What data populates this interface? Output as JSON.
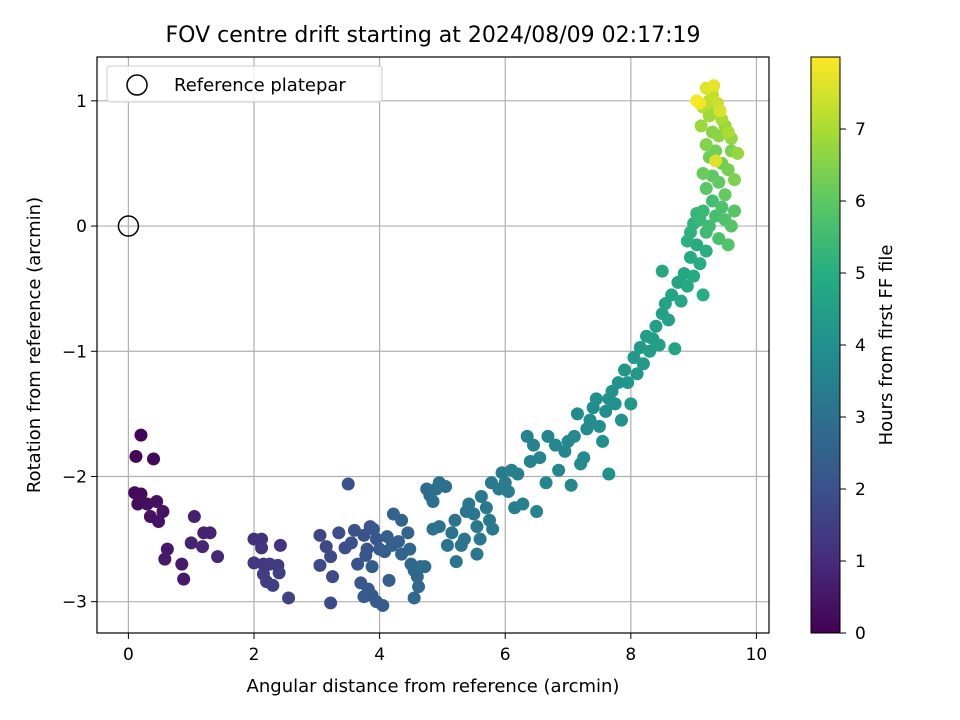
{
  "chart_data": {
    "type": "scatter",
    "title": "FOV centre drift starting at 2024/08/09 02:17:19",
    "xlabel": "Angular distance from reference (arcmin)",
    "ylabel": "Rotation from reference (arcmin)",
    "xlim": [
      -0.5,
      10.2
    ],
    "ylim": [
      -3.25,
      1.35
    ],
    "xticks": [
      0,
      2,
      4,
      6,
      8,
      10
    ],
    "yticks": [
      -3,
      -2,
      -1,
      0,
      1
    ],
    "grid": true,
    "legend": {
      "placement": "top-left",
      "entries": [
        {
          "label": "Reference platepar",
          "marker": "open-circle"
        }
      ]
    },
    "reference_point": {
      "x": 0.0,
      "y": 0.0
    },
    "colorbar": {
      "label": "Hours from first FF file",
      "range": [
        0,
        8.0
      ],
      "ticks": [
        0,
        1,
        2,
        3,
        4,
        5,
        6,
        7
      ],
      "colormap": "viridis"
    },
    "series": [
      {
        "color_by": "hours",
        "points": [
          [
            0.2,
            -1.67,
            0.1
          ],
          [
            0.12,
            -1.84,
            0.1
          ],
          [
            0.4,
            -1.86,
            0.15
          ],
          [
            0.1,
            -2.13,
            0.2
          ],
          [
            0.2,
            -2.14,
            0.25
          ],
          [
            0.15,
            -2.22,
            0.25
          ],
          [
            0.3,
            -2.22,
            0.3
          ],
          [
            0.45,
            -2.2,
            0.35
          ],
          [
            0.55,
            -2.28,
            0.4
          ],
          [
            0.35,
            -2.32,
            0.4
          ],
          [
            0.48,
            -2.36,
            0.45
          ],
          [
            0.62,
            -2.58,
            0.5
          ],
          [
            0.58,
            -2.66,
            0.55
          ],
          [
            0.85,
            -2.7,
            0.6
          ],
          [
            0.88,
            -2.82,
            0.6
          ],
          [
            1.05,
            -2.32,
            0.7
          ],
          [
            1.2,
            -2.45,
            0.75
          ],
          [
            1.3,
            -2.45,
            0.8
          ],
          [
            1.0,
            -2.53,
            0.8
          ],
          [
            1.18,
            -2.56,
            0.85
          ],
          [
            1.42,
            -2.64,
            0.9
          ],
          [
            2.0,
            -2.5,
            1.1
          ],
          [
            2.12,
            -2.5,
            1.15
          ],
          [
            2.12,
            -2.57,
            1.2
          ],
          [
            2.42,
            -2.55,
            1.25
          ],
          [
            2.0,
            -2.69,
            1.3
          ],
          [
            2.15,
            -2.7,
            1.3
          ],
          [
            2.25,
            -2.7,
            1.35
          ],
          [
            2.38,
            -2.71,
            1.4
          ],
          [
            2.15,
            -2.78,
            1.45
          ],
          [
            2.2,
            -2.84,
            1.45
          ],
          [
            2.3,
            -2.87,
            1.5
          ],
          [
            2.4,
            -2.77,
            1.5
          ],
          [
            2.55,
            -2.97,
            1.6
          ],
          [
            3.05,
            -2.47,
            1.7
          ],
          [
            3.15,
            -2.56,
            1.75
          ],
          [
            3.05,
            -2.71,
            1.8
          ],
          [
            3.22,
            -2.64,
            1.8
          ],
          [
            3.25,
            -2.8,
            1.85
          ],
          [
            3.22,
            -3.01,
            1.85
          ],
          [
            3.35,
            -2.45,
            1.9
          ],
          [
            3.45,
            -2.57,
            1.95
          ],
          [
            3.55,
            -2.53,
            2.0
          ],
          [
            3.6,
            -2.43,
            2.0
          ],
          [
            3.5,
            -2.06,
            2.0
          ],
          [
            3.65,
            -2.7,
            2.05
          ],
          [
            3.75,
            -2.47,
            2.1
          ],
          [
            3.8,
            -2.58,
            2.1
          ],
          [
            3.78,
            -2.63,
            2.15
          ],
          [
            3.85,
            -2.4,
            2.15
          ],
          [
            3.9,
            -2.42,
            2.2
          ],
          [
            3.95,
            -2.5,
            2.2
          ],
          [
            3.7,
            -2.85,
            2.2
          ],
          [
            3.82,
            -2.9,
            2.25
          ],
          [
            3.88,
            -2.95,
            2.25
          ],
          [
            3.75,
            -2.96,
            2.3
          ],
          [
            3.95,
            -3.0,
            2.3
          ],
          [
            4.05,
            -3.03,
            2.35
          ],
          [
            3.88,
            -2.72,
            2.35
          ],
          [
            4.0,
            -2.58,
            2.4
          ],
          [
            4.08,
            -2.6,
            2.4
          ],
          [
            4.12,
            -2.48,
            2.45
          ],
          [
            4.15,
            -2.83,
            2.45
          ],
          [
            4.2,
            -2.55,
            2.5
          ],
          [
            4.3,
            -2.52,
            2.5
          ],
          [
            4.35,
            -2.62,
            2.55
          ],
          [
            4.22,
            -2.3,
            2.55
          ],
          [
            4.45,
            -2.45,
            2.6
          ],
          [
            4.35,
            -2.35,
            2.6
          ],
          [
            4.48,
            -2.58,
            2.65
          ],
          [
            4.5,
            -2.7,
            2.65
          ],
          [
            4.55,
            -2.75,
            2.7
          ],
          [
            4.6,
            -2.8,
            2.7
          ],
          [
            4.62,
            -2.88,
            2.75
          ],
          [
            4.55,
            -2.97,
            2.75
          ],
          [
            4.72,
            -2.72,
            2.8
          ],
          [
            4.65,
            -2.72,
            2.8
          ],
          [
            4.75,
            -2.1,
            2.85
          ],
          [
            4.8,
            -2.15,
            2.85
          ],
          [
            4.85,
            -2.2,
            2.9
          ],
          [
            4.9,
            -2.1,
            2.9
          ],
          [
            4.95,
            -2.05,
            2.95
          ],
          [
            5.05,
            -2.08,
            2.95
          ],
          [
            4.85,
            -2.42,
            3.0
          ],
          [
            4.95,
            -2.4,
            3.0
          ],
          [
            5.08,
            -2.55,
            3.05
          ],
          [
            5.15,
            -2.45,
            3.05
          ],
          [
            5.2,
            -2.35,
            3.05
          ],
          [
            5.22,
            -2.68,
            3.1
          ],
          [
            5.3,
            -2.55,
            3.1
          ],
          [
            5.35,
            -2.5,
            3.1
          ],
          [
            5.38,
            -2.28,
            3.15
          ],
          [
            5.42,
            -2.22,
            3.15
          ],
          [
            5.5,
            -2.3,
            3.15
          ],
          [
            5.55,
            -2.4,
            3.2
          ],
          [
            5.55,
            -2.62,
            3.2
          ],
          [
            5.6,
            -2.5,
            3.2
          ],
          [
            5.62,
            -2.16,
            3.25
          ],
          [
            5.7,
            -2.25,
            3.25
          ],
          [
            5.75,
            -2.35,
            3.3
          ],
          [
            5.8,
            -2.42,
            3.3
          ],
          [
            5.78,
            -2.05,
            3.3
          ],
          [
            5.9,
            -2.1,
            3.35
          ],
          [
            5.95,
            -1.97,
            3.35
          ],
          [
            6.0,
            -2.05,
            3.4
          ],
          [
            6.05,
            -2.12,
            3.4
          ],
          [
            6.1,
            -1.95,
            3.45
          ],
          [
            6.2,
            -1.98,
            3.45
          ],
          [
            6.15,
            -2.25,
            3.45
          ],
          [
            6.28,
            -2.22,
            3.5
          ],
          [
            6.35,
            -1.68,
            3.5
          ],
          [
            6.4,
            -1.88,
            3.55
          ],
          [
            6.45,
            -1.75,
            3.55
          ],
          [
            6.55,
            -1.85,
            3.6
          ],
          [
            6.5,
            -2.28,
            3.6
          ],
          [
            6.65,
            -2.05,
            3.65
          ],
          [
            6.68,
            -1.68,
            3.65
          ],
          [
            6.8,
            -1.75,
            3.7
          ],
          [
            6.85,
            -1.95,
            3.7
          ],
          [
            6.95,
            -1.8,
            3.7
          ],
          [
            7.0,
            -1.72,
            3.75
          ],
          [
            7.05,
            -2.07,
            3.75
          ],
          [
            7.1,
            -1.68,
            3.8
          ],
          [
            7.15,
            -1.5,
            3.8
          ],
          [
            7.2,
            -1.9,
            3.8
          ],
          [
            7.25,
            -1.85,
            3.85
          ],
          [
            7.3,
            -1.62,
            3.85
          ],
          [
            7.35,
            -1.55,
            3.9
          ],
          [
            7.4,
            -1.45,
            3.9
          ],
          [
            7.45,
            -1.38,
            3.95
          ],
          [
            7.5,
            -1.6,
            3.95
          ],
          [
            7.55,
            -1.72,
            4.0
          ],
          [
            7.6,
            -1.48,
            4.0
          ],
          [
            7.65,
            -1.98,
            4.05
          ],
          [
            7.65,
            -1.38,
            4.05
          ],
          [
            7.7,
            -1.32,
            4.1
          ],
          [
            7.75,
            -1.42,
            4.1
          ],
          [
            7.8,
            -1.25,
            4.15
          ],
          [
            7.85,
            -1.55,
            4.15
          ],
          [
            7.9,
            -1.15,
            4.2
          ],
          [
            7.95,
            -1.25,
            4.2
          ],
          [
            8.0,
            -1.42,
            4.25
          ],
          [
            8.05,
            -1.05,
            4.25
          ],
          [
            8.1,
            -1.18,
            4.3
          ],
          [
            8.15,
            -0.97,
            4.35
          ],
          [
            8.2,
            -1.1,
            4.35
          ],
          [
            8.25,
            -0.88,
            4.4
          ],
          [
            8.3,
            -1.0,
            4.4
          ],
          [
            8.35,
            -0.9,
            4.45
          ],
          [
            8.4,
            -0.8,
            4.5
          ],
          [
            8.45,
            -0.95,
            4.5
          ],
          [
            8.5,
            -0.7,
            4.55
          ],
          [
            8.55,
            -0.62,
            4.6
          ],
          [
            8.6,
            -0.75,
            4.6
          ],
          [
            8.65,
            -0.55,
            4.65
          ],
          [
            8.7,
            -0.98,
            4.7
          ],
          [
            8.75,
            -0.45,
            4.7
          ],
          [
            8.8,
            -0.6,
            4.75
          ],
          [
            8.85,
            -0.38,
            4.8
          ],
          [
            8.5,
            -0.36,
            4.8
          ],
          [
            8.9,
            -0.48,
            4.85
          ],
          [
            8.95,
            -0.25,
            4.9
          ],
          [
            9.0,
            -0.4,
            4.9
          ],
          [
            9.05,
            -0.15,
            4.95
          ],
          [
            9.1,
            -0.3,
            5.0
          ],
          [
            9.15,
            -0.55,
            5.0
          ],
          [
            9.2,
            -0.2,
            5.05
          ],
          [
            8.9,
            -0.12,
            5.1
          ],
          [
            8.95,
            -0.05,
            5.15
          ],
          [
            9.0,
            0.02,
            5.2
          ],
          [
            9.05,
            0.1,
            5.3
          ],
          [
            9.1,
            0.05,
            5.35
          ],
          [
            9.15,
            0.12,
            5.4
          ],
          [
            9.2,
            -0.05,
            5.45
          ],
          [
            9.25,
            0.0,
            5.5
          ],
          [
            9.3,
            0.2,
            5.55
          ],
          [
            9.35,
            0.08,
            5.6
          ],
          [
            9.4,
            -0.1,
            5.65
          ],
          [
            9.45,
            0.15,
            5.7
          ],
          [
            9.5,
            0.05,
            5.75
          ],
          [
            9.55,
            -0.15,
            5.8
          ],
          [
            9.6,
            0.0,
            5.85
          ],
          [
            9.65,
            0.12,
            5.9
          ],
          [
            9.2,
            0.3,
            5.95
          ],
          [
            9.3,
            0.4,
            6.0
          ],
          [
            9.4,
            0.35,
            6.05
          ],
          [
            9.5,
            0.25,
            6.1
          ],
          [
            9.15,
            0.42,
            6.15
          ],
          [
            9.25,
            0.55,
            6.2
          ],
          [
            9.35,
            0.6,
            6.25
          ],
          [
            9.45,
            0.5,
            6.3
          ],
          [
            9.55,
            0.45,
            6.35
          ],
          [
            9.6,
            0.6,
            6.4
          ],
          [
            9.65,
            0.37,
            6.45
          ],
          [
            9.2,
            0.65,
            6.5
          ],
          [
            9.3,
            0.75,
            6.55
          ],
          [
            9.4,
            0.72,
            6.6
          ],
          [
            9.5,
            0.8,
            6.65
          ],
          [
            9.6,
            0.7,
            6.7
          ],
          [
            9.7,
            0.58,
            6.75
          ],
          [
            9.12,
            0.8,
            6.8
          ],
          [
            9.25,
            0.88,
            6.85
          ],
          [
            9.35,
            0.92,
            6.9
          ],
          [
            9.45,
            0.85,
            6.95
          ],
          [
            9.55,
            0.75,
            7.0
          ],
          [
            9.15,
            0.95,
            7.1
          ],
          [
            9.25,
            1.0,
            7.2
          ],
          [
            9.3,
            1.05,
            7.3
          ],
          [
            9.38,
            0.98,
            7.4
          ],
          [
            9.42,
            0.92,
            7.5
          ],
          [
            9.2,
            1.1,
            7.6
          ],
          [
            9.32,
            1.12,
            7.7
          ],
          [
            9.1,
            0.98,
            7.8
          ],
          [
            9.05,
            1.0,
            7.9
          ],
          [
            9.35,
            0.52,
            7.6
          ]
        ]
      }
    ]
  }
}
